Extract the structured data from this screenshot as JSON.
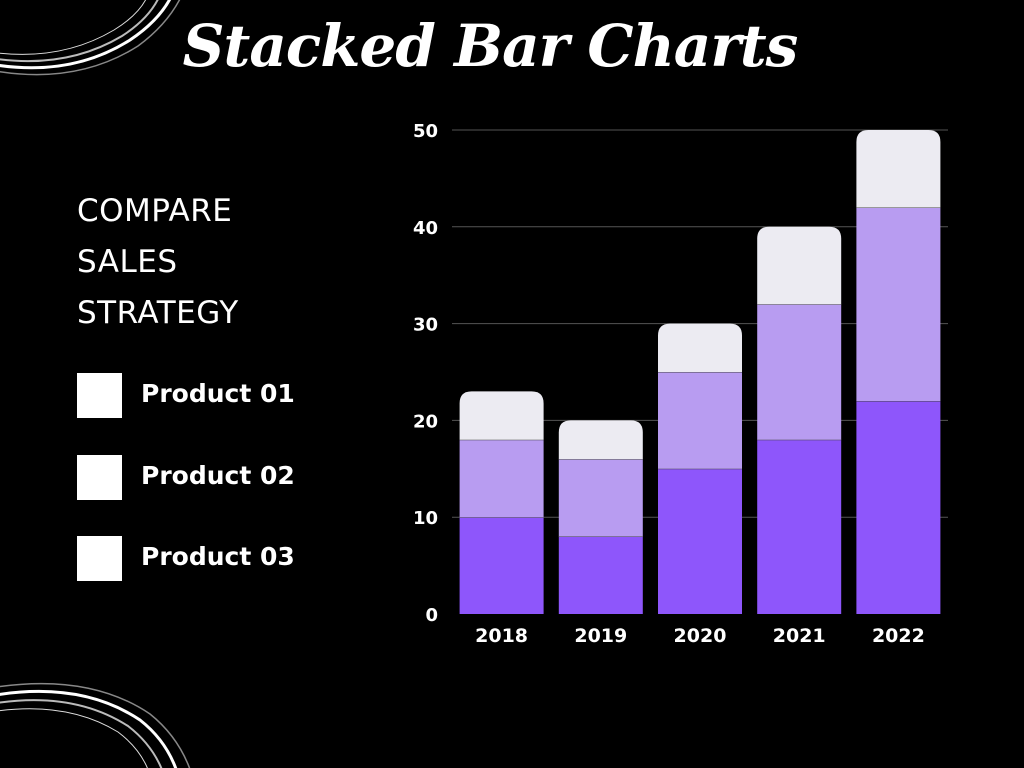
{
  "title": "Stacked Bar Charts",
  "subtitle_lines": [
    "COMPARE",
    "SALES",
    "STRATEGY"
  ],
  "legend": [
    {
      "label": "Product 01"
    },
    {
      "label": "Product 02"
    },
    {
      "label": "Product 03"
    }
  ],
  "colors": {
    "background": "#000000",
    "text": "#ffffff",
    "series": [
      "#8e56fb",
      "#b89cf1",
      "#ecebf2"
    ],
    "grid": "#555555"
  },
  "chart_data": {
    "type": "bar",
    "stacked": true,
    "title": "",
    "xlabel": "",
    "ylabel": "",
    "categories": [
      "2018",
      "2019",
      "2020",
      "2021",
      "2022"
    ],
    "series": [
      {
        "name": "Product 01",
        "values": [
          10,
          8,
          15,
          18,
          22
        ]
      },
      {
        "name": "Product 02",
        "values": [
          8,
          8,
          10,
          14,
          20
        ]
      },
      {
        "name": "Product 03",
        "values": [
          5,
          4,
          5,
          8,
          8
        ]
      }
    ],
    "ylim": [
      0,
      50
    ],
    "yticks": [
      0,
      10,
      20,
      30,
      40,
      50
    ],
    "grid": true,
    "legend_position": "left"
  }
}
